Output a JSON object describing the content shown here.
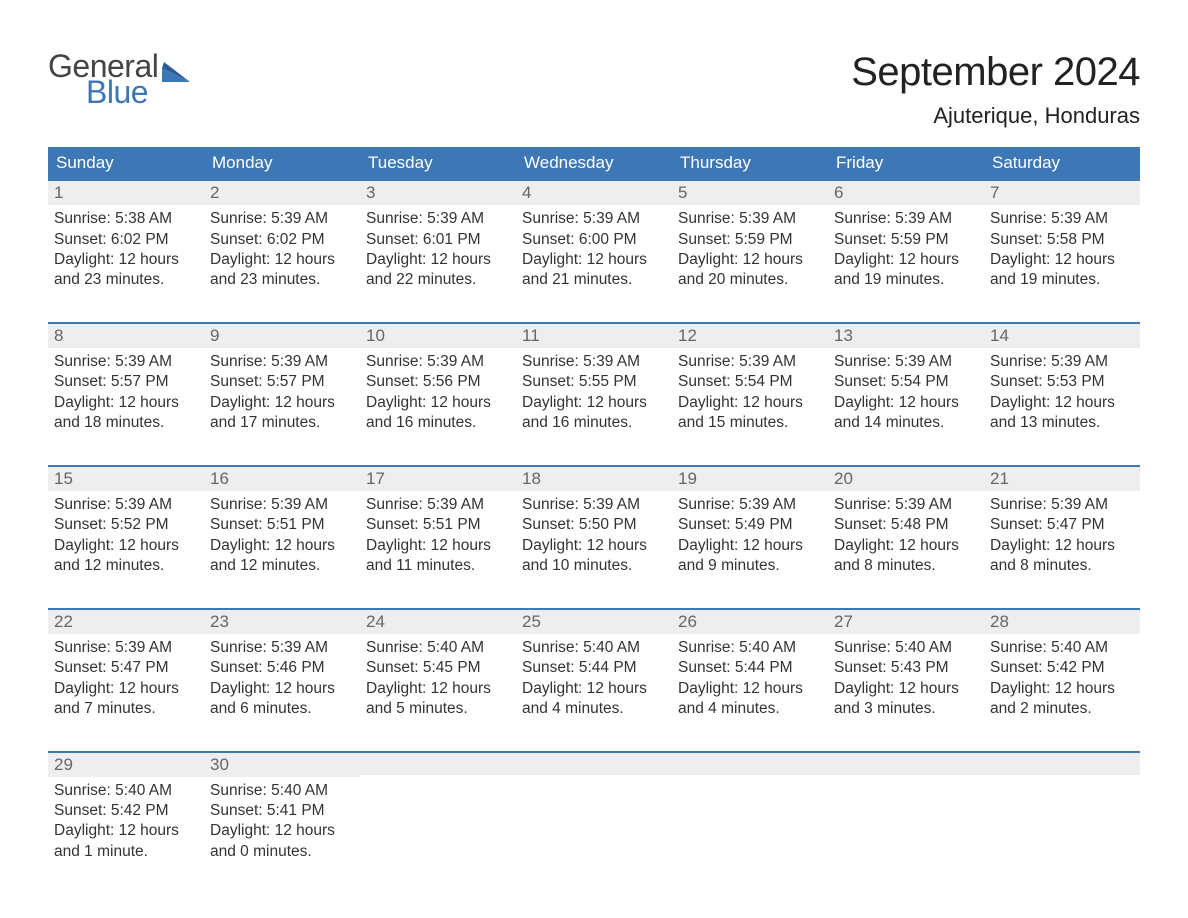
{
  "brand": {
    "word1": "General",
    "word2": "Blue"
  },
  "title": "September 2024",
  "location": "Ajuterique, Honduras",
  "colors": {
    "brand_blue": "#3d77b6",
    "header_bg": "#3d77b6",
    "row_border": "#3d77b6",
    "day_bg": "#eeeeee",
    "text": "#333333",
    "page_bg": "#ffffff"
  },
  "weekdays": [
    "Sunday",
    "Monday",
    "Tuesday",
    "Wednesday",
    "Thursday",
    "Friday",
    "Saturday"
  ],
  "days": [
    {
      "n": "1",
      "sunrise": "5:38 AM",
      "sunset": "6:02 PM",
      "daylight": "12 hours and 23 minutes."
    },
    {
      "n": "2",
      "sunrise": "5:39 AM",
      "sunset": "6:02 PM",
      "daylight": "12 hours and 23 minutes."
    },
    {
      "n": "3",
      "sunrise": "5:39 AM",
      "sunset": "6:01 PM",
      "daylight": "12 hours and 22 minutes."
    },
    {
      "n": "4",
      "sunrise": "5:39 AM",
      "sunset": "6:00 PM",
      "daylight": "12 hours and 21 minutes."
    },
    {
      "n": "5",
      "sunrise": "5:39 AM",
      "sunset": "5:59 PM",
      "daylight": "12 hours and 20 minutes."
    },
    {
      "n": "6",
      "sunrise": "5:39 AM",
      "sunset": "5:59 PM",
      "daylight": "12 hours and 19 minutes."
    },
    {
      "n": "7",
      "sunrise": "5:39 AM",
      "sunset": "5:58 PM",
      "daylight": "12 hours and 19 minutes."
    },
    {
      "n": "8",
      "sunrise": "5:39 AM",
      "sunset": "5:57 PM",
      "daylight": "12 hours and 18 minutes."
    },
    {
      "n": "9",
      "sunrise": "5:39 AM",
      "sunset": "5:57 PM",
      "daylight": "12 hours and 17 minutes."
    },
    {
      "n": "10",
      "sunrise": "5:39 AM",
      "sunset": "5:56 PM",
      "daylight": "12 hours and 16 minutes."
    },
    {
      "n": "11",
      "sunrise": "5:39 AM",
      "sunset": "5:55 PM",
      "daylight": "12 hours and 16 minutes."
    },
    {
      "n": "12",
      "sunrise": "5:39 AM",
      "sunset": "5:54 PM",
      "daylight": "12 hours and 15 minutes."
    },
    {
      "n": "13",
      "sunrise": "5:39 AM",
      "sunset": "5:54 PM",
      "daylight": "12 hours and 14 minutes."
    },
    {
      "n": "14",
      "sunrise": "5:39 AM",
      "sunset": "5:53 PM",
      "daylight": "12 hours and 13 minutes."
    },
    {
      "n": "15",
      "sunrise": "5:39 AM",
      "sunset": "5:52 PM",
      "daylight": "12 hours and 12 minutes."
    },
    {
      "n": "16",
      "sunrise": "5:39 AM",
      "sunset": "5:51 PM",
      "daylight": "12 hours and 12 minutes."
    },
    {
      "n": "17",
      "sunrise": "5:39 AM",
      "sunset": "5:51 PM",
      "daylight": "12 hours and 11 minutes."
    },
    {
      "n": "18",
      "sunrise": "5:39 AM",
      "sunset": "5:50 PM",
      "daylight": "12 hours and 10 minutes."
    },
    {
      "n": "19",
      "sunrise": "5:39 AM",
      "sunset": "5:49 PM",
      "daylight": "12 hours and 9 minutes."
    },
    {
      "n": "20",
      "sunrise": "5:39 AM",
      "sunset": "5:48 PM",
      "daylight": "12 hours and 8 minutes."
    },
    {
      "n": "21",
      "sunrise": "5:39 AM",
      "sunset": "5:47 PM",
      "daylight": "12 hours and 8 minutes."
    },
    {
      "n": "22",
      "sunrise": "5:39 AM",
      "sunset": "5:47 PM",
      "daylight": "12 hours and 7 minutes."
    },
    {
      "n": "23",
      "sunrise": "5:39 AM",
      "sunset": "5:46 PM",
      "daylight": "12 hours and 6 minutes."
    },
    {
      "n": "24",
      "sunrise": "5:40 AM",
      "sunset": "5:45 PM",
      "daylight": "12 hours and 5 minutes."
    },
    {
      "n": "25",
      "sunrise": "5:40 AM",
      "sunset": "5:44 PM",
      "daylight": "12 hours and 4 minutes."
    },
    {
      "n": "26",
      "sunrise": "5:40 AM",
      "sunset": "5:44 PM",
      "daylight": "12 hours and 4 minutes."
    },
    {
      "n": "27",
      "sunrise": "5:40 AM",
      "sunset": "5:43 PM",
      "daylight": "12 hours and 3 minutes."
    },
    {
      "n": "28",
      "sunrise": "5:40 AM",
      "sunset": "5:42 PM",
      "daylight": "12 hours and 2 minutes."
    },
    {
      "n": "29",
      "sunrise": "5:40 AM",
      "sunset": "5:42 PM",
      "daylight": "12 hours and 1 minute."
    },
    {
      "n": "30",
      "sunrise": "5:40 AM",
      "sunset": "5:41 PM",
      "daylight": "12 hours and 0 minutes."
    }
  ],
  "labels": {
    "sunrise": "Sunrise: ",
    "sunset": "Sunset: ",
    "daylight": "Daylight: "
  },
  "layout": {
    "start_weekday_index": 0,
    "total_cells": 35
  }
}
